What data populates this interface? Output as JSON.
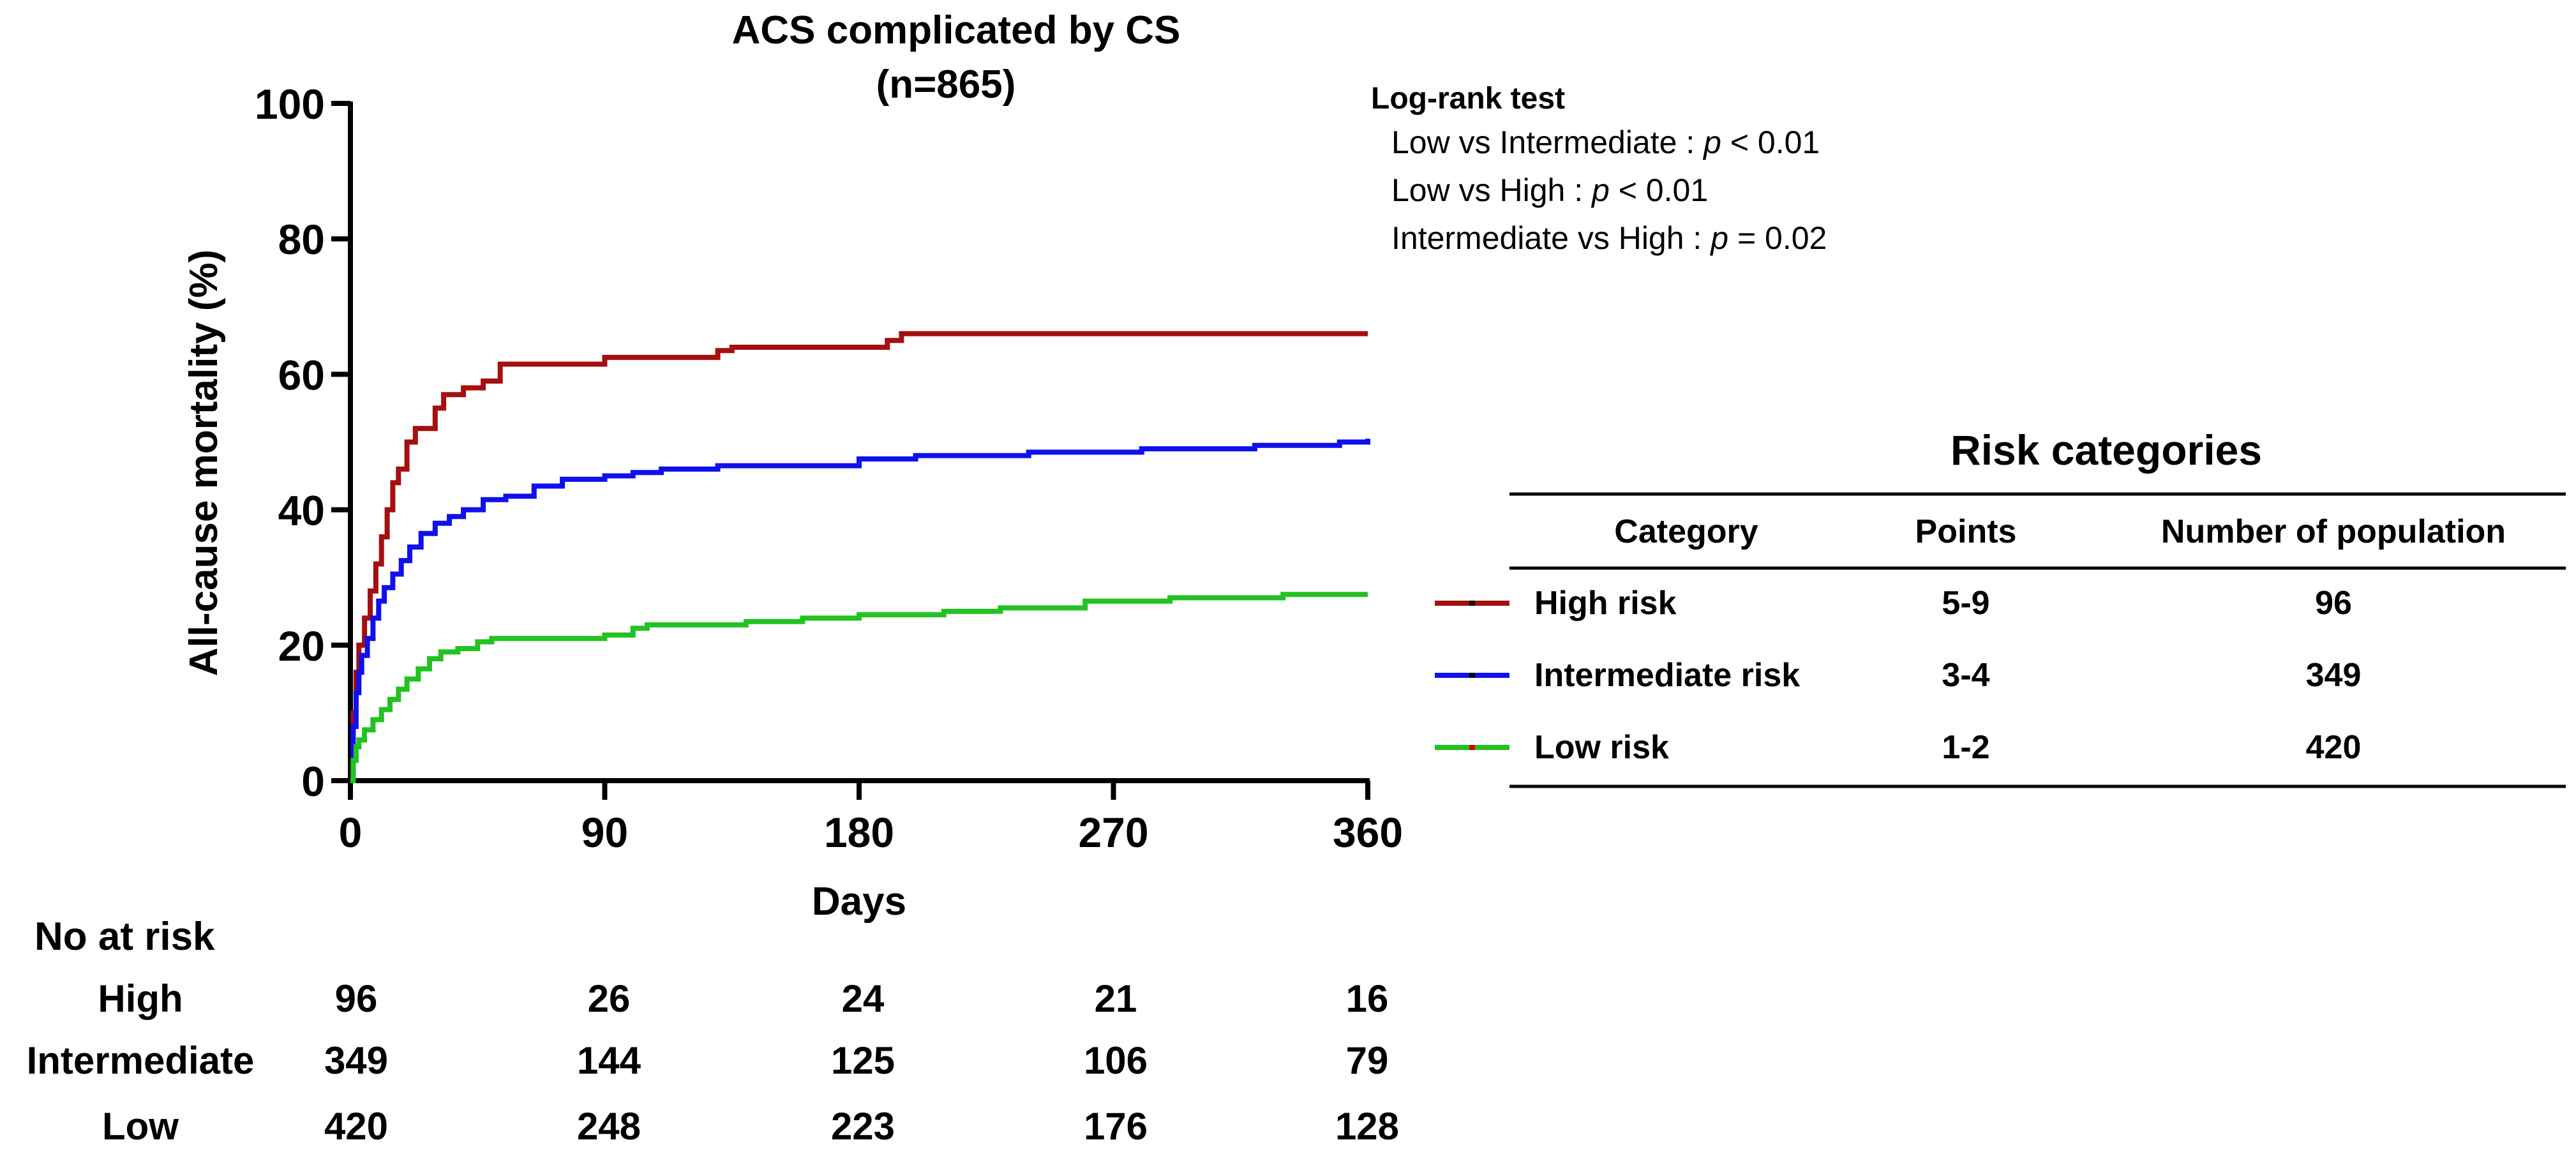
{
  "chart_data": {
    "type": "line",
    "title": "ACS complicated by CS",
    "subtitle": "(n=865)",
    "xlabel": "Days",
    "ylabel": "All-cause mortality (%)",
    "xlim": [
      0,
      360
    ],
    "ylim": [
      0,
      100
    ],
    "xticks": [
      "0",
      "90",
      "180",
      "270",
      "360"
    ],
    "xtick_values": [
      0,
      90,
      180,
      270,
      360
    ],
    "yticks": [
      "0",
      "20",
      "40",
      "60",
      "80",
      "100"
    ],
    "ytick_values": [
      0,
      20,
      40,
      60,
      80,
      100
    ],
    "series": [
      {
        "name": "High risk",
        "color": "#a50f0f",
        "points": [
          [
            0,
            0
          ],
          [
            1,
            10
          ],
          [
            2,
            16
          ],
          [
            3,
            20
          ],
          [
            5,
            24
          ],
          [
            7,
            28
          ],
          [
            9,
            32
          ],
          [
            11,
            36
          ],
          [
            13,
            40
          ],
          [
            15,
            44
          ],
          [
            17,
            46
          ],
          [
            20,
            50
          ],
          [
            23,
            52
          ],
          [
            30,
            55
          ],
          [
            33,
            57
          ],
          [
            40,
            58
          ],
          [
            47,
            59
          ],
          [
            53,
            61.5
          ],
          [
            90,
            62.5
          ],
          [
            130,
            63.5
          ],
          [
            135,
            64
          ],
          [
            190,
            65
          ],
          [
            195,
            66
          ],
          [
            360,
            66
          ]
        ]
      },
      {
        "name": "Intermediate risk",
        "color": "#1010ee",
        "points": [
          [
            0,
            0
          ],
          [
            1,
            8
          ],
          [
            2,
            13
          ],
          [
            3,
            16
          ],
          [
            4,
            18.5
          ],
          [
            6,
            21
          ],
          [
            8,
            24
          ],
          [
            10,
            26.5
          ],
          [
            12,
            28.5
          ],
          [
            15,
            30.5
          ],
          [
            18,
            32.5
          ],
          [
            21,
            34.5
          ],
          [
            25,
            36.5
          ],
          [
            30,
            38
          ],
          [
            35,
            39
          ],
          [
            40,
            40
          ],
          [
            47,
            41.5
          ],
          [
            55,
            42
          ],
          [
            65,
            43.5
          ],
          [
            75,
            44.5
          ],
          [
            90,
            45
          ],
          [
            100,
            45.5
          ],
          [
            110,
            46
          ],
          [
            130,
            46.5
          ],
          [
            170,
            46.5
          ],
          [
            180,
            47.5
          ],
          [
            200,
            48
          ],
          [
            240,
            48.5
          ],
          [
            280,
            49
          ],
          [
            320,
            49.5
          ],
          [
            350,
            50
          ],
          [
            360,
            50.5
          ]
        ]
      },
      {
        "name": "Low risk",
        "color": "#22c222",
        "points": [
          [
            0,
            0
          ],
          [
            1,
            3
          ],
          [
            2,
            5
          ],
          [
            3,
            6
          ],
          [
            5,
            7.5
          ],
          [
            8,
            9
          ],
          [
            11,
            10.5
          ],
          [
            14,
            12
          ],
          [
            17,
            13.5
          ],
          [
            20,
            15
          ],
          [
            24,
            16.5
          ],
          [
            28,
            18
          ],
          [
            32,
            19
          ],
          [
            38,
            19.5
          ],
          [
            45,
            20.5
          ],
          [
            50,
            21
          ],
          [
            90,
            21.5
          ],
          [
            100,
            22.5
          ],
          [
            105,
            23
          ],
          [
            140,
            23.5
          ],
          [
            160,
            24
          ],
          [
            180,
            24.5
          ],
          [
            210,
            25
          ],
          [
            230,
            25.5
          ],
          [
            260,
            26.5
          ],
          [
            290,
            27
          ],
          [
            330,
            27.5
          ],
          [
            360,
            27.5
          ]
        ]
      }
    ]
  },
  "logrank": {
    "title": "Log-rank test",
    "rows": [
      {
        "label": "Low  vs Intermediate : ",
        "p": "p",
        "rest": " < 0.01"
      },
      {
        "label": "Low  vs High : ",
        "p": "p",
        "rest": " < 0.01"
      },
      {
        "label": "Intermediate vs High : ",
        "p": "p",
        "rest": " = 0.02"
      }
    ]
  },
  "risk_table": {
    "title": "Risk categories",
    "headers": [
      "Category",
      "Points",
      "Number of population"
    ],
    "rows": [
      {
        "category": "High risk",
        "points": "5-9",
        "population": "96"
      },
      {
        "category": "Intermediate risk",
        "points": "3-4",
        "population": "349"
      },
      {
        "category": "Low risk",
        "points": "1-2",
        "population": "420"
      }
    ]
  },
  "at_risk": {
    "title": "No at risk",
    "rows": [
      {
        "label": "High",
        "values": [
          "96",
          "26",
          "24",
          "21",
          "16"
        ]
      },
      {
        "label": "Intermediate",
        "values": [
          "349",
          "144",
          "125",
          "106",
          "79"
        ]
      },
      {
        "label": "Low",
        "values": [
          "420",
          "248",
          "223",
          "176",
          "128"
        ]
      }
    ]
  }
}
